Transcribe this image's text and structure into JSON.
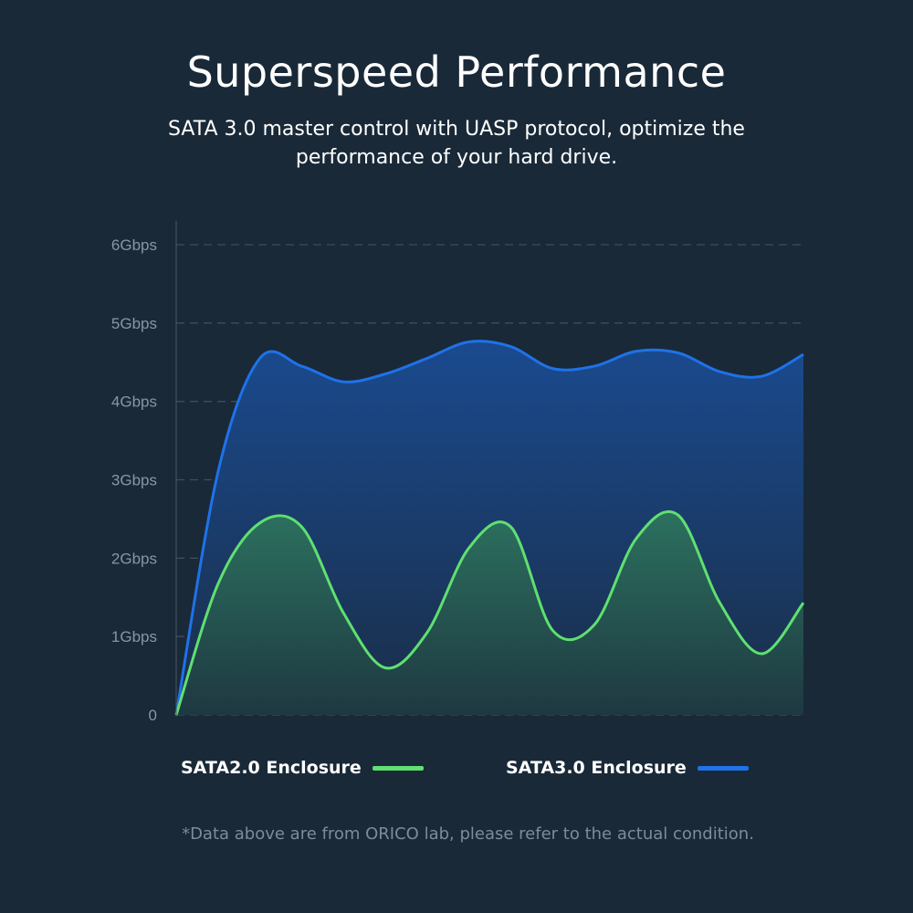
{
  "header": {
    "title": "Superspeed Performance",
    "subtitle": "SATA 3.0 master control with UASP protocol, optimize the performance of your hard drive."
  },
  "footnote": "*Data above are from ORICO lab, please refer to the actual condition.",
  "chart_data": {
    "type": "area",
    "title": "",
    "xlabel": "",
    "ylabel": "",
    "ylim": [
      0,
      6
    ],
    "yticks": [
      0,
      1,
      2,
      3,
      4,
      5,
      6
    ],
    "ytick_labels": [
      "0",
      "1Gbps",
      "2Gbps",
      "3Gbps",
      "4Gbps",
      "5Gbps",
      "6Gbps"
    ],
    "grid": "horizontal-dashed",
    "legend_placement": "bottom",
    "series": [
      {
        "name": "SATA3.0 Enclosure",
        "color": "#1f72e8",
        "values": [
          0,
          3.1,
          4.55,
          4.45,
          4.25,
          4.35,
          4.55,
          4.76,
          4.7,
          4.42,
          4.45,
          4.64,
          4.62,
          4.38,
          4.32,
          4.6
        ]
      },
      {
        "name": "SATA2.0 Enclosure",
        "color": "#5fe070",
        "values": [
          0,
          1.67,
          2.45,
          2.4,
          1.3,
          0.6,
          1.05,
          2.13,
          2.4,
          1.08,
          1.15,
          2.25,
          2.55,
          1.43,
          0.78,
          1.43
        ]
      }
    ]
  }
}
